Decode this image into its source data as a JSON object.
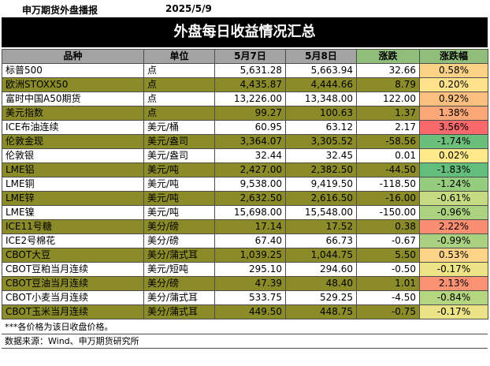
{
  "header": {
    "title": "申万期货外盘播报",
    "date": "2025/5/9"
  },
  "banner": {
    "title": "外盘每日收益情况汇总"
  },
  "table": {
    "columns": [
      "品种",
      "单位",
      "5月7日",
      "5月8日",
      "涨跌",
      "涨跌幅"
    ],
    "rows": [
      {
        "name": "标普500",
        "unit": "点",
        "d1": "5,631.28",
        "d2": "5,663.94",
        "chg": "32.66",
        "pct": "0.58%",
        "color": "#fcd286"
      },
      {
        "name": "欧洲STOXX50",
        "unit": "点",
        "d1": "4,435.87",
        "d2": "4,444.66",
        "chg": "8.79",
        "pct": "0.20%",
        "color": "#ffe28a"
      },
      {
        "name": "富时中国A50期货",
        "unit": "点",
        "d1": "13,226.00",
        "d2": "13,348.00",
        "chg": "122.00",
        "pct": "0.92%",
        "color": "#fbbf80"
      },
      {
        "name": "美元指数",
        "unit": "点",
        "d1": "99.27",
        "d2": "100.63",
        "chg": "1.37",
        "pct": "1.38%",
        "color": "#faa877"
      },
      {
        "name": "ICE布油连续",
        "unit": "美元/桶",
        "d1": "60.95",
        "d2": "63.12",
        "chg": "2.17",
        "pct": "3.56%",
        "color": "#f8696b"
      },
      {
        "name": "伦敦金现",
        "unit": "美元/盎司",
        "d1": "3,364.07",
        "d2": "3,305.52",
        "chg": "-58.56",
        "pct": "-1.74%",
        "color": "#6bbf7a"
      },
      {
        "name": "伦敦银",
        "unit": "美元/盎司",
        "d1": "32.44",
        "d2": "32.45",
        "chg": "0.01",
        "pct": "0.02%",
        "color": "#ffe98b"
      },
      {
        "name": "LME铝",
        "unit": "美元/吨",
        "d1": "2,427.00",
        "d2": "2,382.50",
        "chg": "-44.50",
        "pct": "-1.83%",
        "color": "#63be7b"
      },
      {
        "name": "LME铜",
        "unit": "美元/吨",
        "d1": "9,538.00",
        "d2": "9,419.50",
        "chg": "-118.50",
        "pct": "-1.24%",
        "color": "#96cc7e"
      },
      {
        "name": "LME锌",
        "unit": "美元/吨",
        "d1": "2,632.50",
        "d2": "2,616.50",
        "chg": "-16.00",
        "pct": "-0.61%",
        "color": "#c6da82"
      },
      {
        "name": "LME镍",
        "unit": "美元/吨",
        "d1": "15,698.00",
        "d2": "15,548.00",
        "chg": "-150.00",
        "pct": "-0.96%",
        "color": "#abd27f"
      },
      {
        "name": "ICE11号糖",
        "unit": "美分/磅",
        "d1": "17.14",
        "d2": "17.52",
        "chg": "0.38",
        "pct": "2.22%",
        "color": "#f98e72"
      },
      {
        "name": "ICE2号棉花",
        "unit": "美分/磅",
        "d1": "67.40",
        "d2": "66.73",
        "chg": "-0.67",
        "pct": "-0.99%",
        "color": "#a9d17f"
      },
      {
        "name": "CBOT大豆",
        "unit": "美分/蒲式耳",
        "d1": "1,039.25",
        "d2": "1,044.75",
        "chg": "5.50",
        "pct": "0.53%",
        "color": "#fdd387"
      },
      {
        "name": "CBOT豆粕当月连续",
        "unit": "美元/短吨",
        "d1": "295.10",
        "d2": "294.60",
        "chg": "-0.50",
        "pct": "-0.17%",
        "color": "#ebe385"
      },
      {
        "name": "CBOT豆油当月连续",
        "unit": "美分/磅",
        "d1": "47.39",
        "d2": "48.40",
        "chg": "1.01",
        "pct": "2.13%",
        "color": "#f99173"
      },
      {
        "name": "CBOT小麦当月连续",
        "unit": "美分/蒲式耳",
        "d1": "533.75",
        "d2": "529.25",
        "chg": "-4.50",
        "pct": "-0.84%",
        "color": "#b6d580"
      },
      {
        "name": "CBOT玉米当月连续",
        "unit": "美分/蒲式耳",
        "d1": "449.50",
        "d2": "448.75",
        "chg": "-0.75",
        "pct": "-0.17%",
        "color": "#ebe385"
      }
    ]
  },
  "footer": {
    "note": "***各价格为该日收盘价格。",
    "source": "数据来源：Wind、申万期货研究所"
  }
}
